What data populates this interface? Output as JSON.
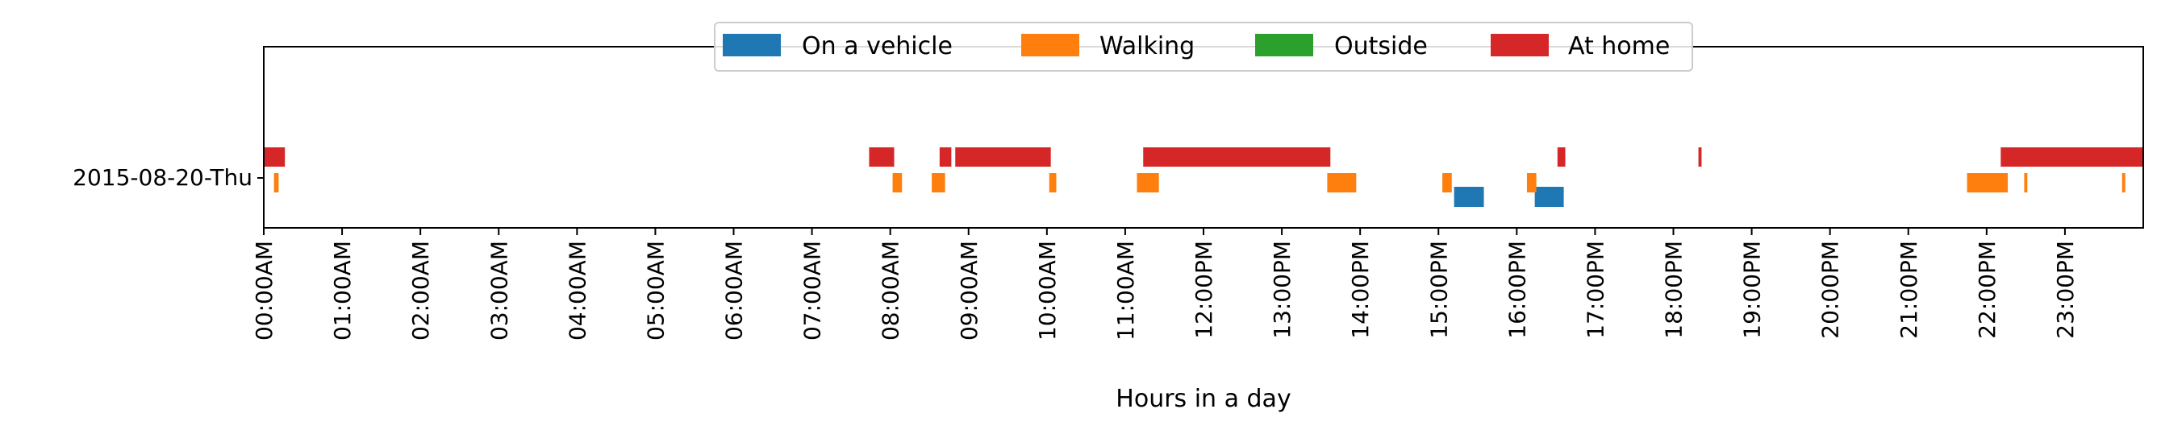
{
  "chart_data": {
    "type": "bar",
    "orientation": "horizontal-timeline",
    "categories": [
      "2015-08-20-Thu"
    ],
    "xlabel": "Hours in a day",
    "xlim_hours": [
      0,
      24
    ],
    "x_ticks": [
      "00:00AM",
      "01:00AM",
      "02:00AM",
      "03:00AM",
      "04:00AM",
      "05:00AM",
      "06:00AM",
      "07:00AM",
      "08:00AM",
      "09:00AM",
      "10:00AM",
      "11:00AM",
      "12:00PM",
      "13:00PM",
      "14:00PM",
      "15:00PM",
      "16:00PM",
      "17:00PM",
      "18:00PM",
      "19:00PM",
      "20:00PM",
      "21:00PM",
      "22:00PM",
      "23:00PM"
    ],
    "grid": false,
    "legend_position": "top-center",
    "series": [
      {
        "name": "On a vehicle",
        "color": "#1f77b4",
        "lane": "lower",
        "intervals_hours": [
          [
            15.2,
            15.58
          ],
          [
            16.23,
            16.6
          ]
        ]
      },
      {
        "name": "Walking",
        "color": "#ff7f0e",
        "lane": "upper-small",
        "intervals_hours": [
          [
            0.13,
            0.19
          ],
          [
            8.03,
            8.15
          ],
          [
            8.53,
            8.7
          ],
          [
            10.03,
            10.12
          ],
          [
            11.15,
            11.43
          ],
          [
            13.58,
            13.95
          ],
          [
            15.05,
            15.17
          ],
          [
            16.13,
            16.25
          ],
          [
            21.75,
            22.27
          ],
          [
            22.48,
            22.52
          ],
          [
            23.73,
            23.77
          ]
        ]
      },
      {
        "name": "Outside",
        "color": "#2ca02c",
        "lane": "upper",
        "intervals_hours": []
      },
      {
        "name": "At home",
        "color": "#d62728",
        "lane": "upper",
        "intervals_hours": [
          [
            0.0,
            0.27
          ],
          [
            7.73,
            8.05
          ],
          [
            8.63,
            8.78
          ],
          [
            8.83,
            10.05
          ],
          [
            11.23,
            13.62
          ],
          [
            16.52,
            16.62
          ],
          [
            18.32,
            18.36
          ],
          [
            22.18,
            24.0
          ]
        ]
      }
    ]
  }
}
